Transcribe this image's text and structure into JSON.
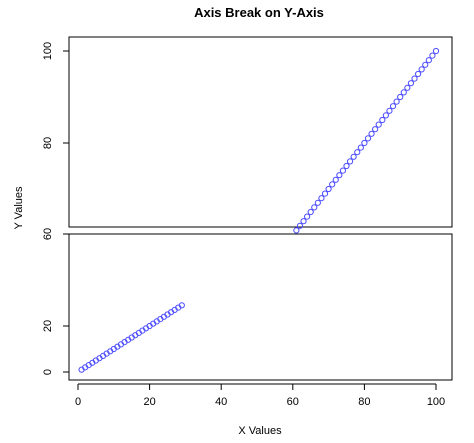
{
  "chart_data": {
    "type": "scatter",
    "title": "Axis Break on Y-Axis",
    "xlabel": "X Values",
    "ylabel": "Y Values",
    "xlim": [
      0,
      100
    ],
    "x_ticks": [
      0,
      20,
      40,
      60,
      80,
      100
    ],
    "grid": false,
    "point_color": "#4d4dff",
    "y_break": {
      "lower_range": [
        0,
        60
      ],
      "upper_range": [
        60,
        100
      ]
    },
    "lower_panel": {
      "y_ticks": [
        0,
        20,
        60
      ],
      "x": [
        1,
        2,
        3,
        4,
        5,
        6,
        7,
        8,
        9,
        10,
        11,
        12,
        13,
        14,
        15,
        16,
        17,
        18,
        19,
        20,
        21,
        22,
        23,
        24,
        25,
        26,
        27,
        28,
        29
      ],
      "y": [
        1,
        2,
        3,
        4,
        5,
        6,
        7,
        8,
        9,
        10,
        11,
        12,
        13,
        14,
        15,
        16,
        17,
        18,
        19,
        20,
        21,
        22,
        23,
        24,
        25,
        26,
        27,
        28,
        29
      ]
    },
    "upper_panel": {
      "y_ticks": [
        80,
        100
      ],
      "x": [
        61,
        62,
        63,
        64,
        65,
        66,
        67,
        68,
        69,
        70,
        71,
        72,
        73,
        74,
        75,
        76,
        77,
        78,
        79,
        80,
        81,
        82,
        83,
        84,
        85,
        86,
        87,
        88,
        89,
        90,
        91,
        92,
        93,
        94,
        95,
        96,
        97,
        98,
        99,
        100
      ],
      "y": [
        61,
        62,
        63,
        64,
        65,
        66,
        67,
        68,
        69,
        70,
        71,
        72,
        73,
        74,
        75,
        76,
        77,
        78,
        79,
        80,
        81,
        82,
        83,
        84,
        85,
        86,
        87,
        88,
        89,
        90,
        91,
        92,
        93,
        94,
        95,
        96,
        97,
        98,
        99,
        100
      ]
    }
  }
}
